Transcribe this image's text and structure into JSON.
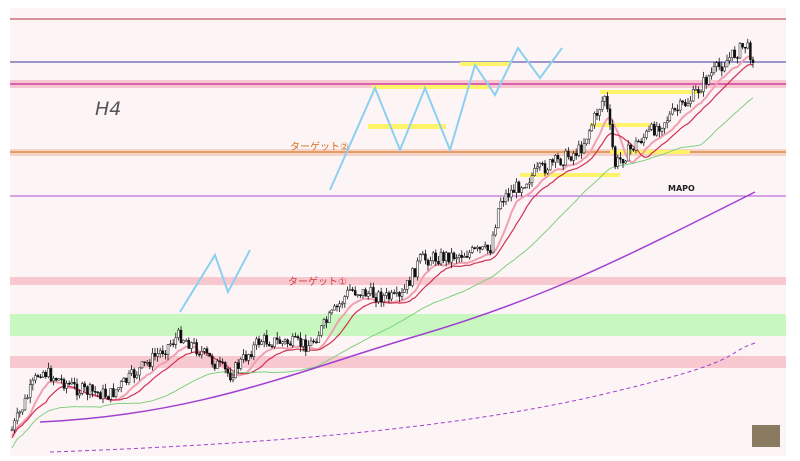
{
  "labels": {
    "timeframe": "H4",
    "target2": "ターゲット②",
    "target1": "ターゲット①",
    "indicator": "MAPO"
  }
}
